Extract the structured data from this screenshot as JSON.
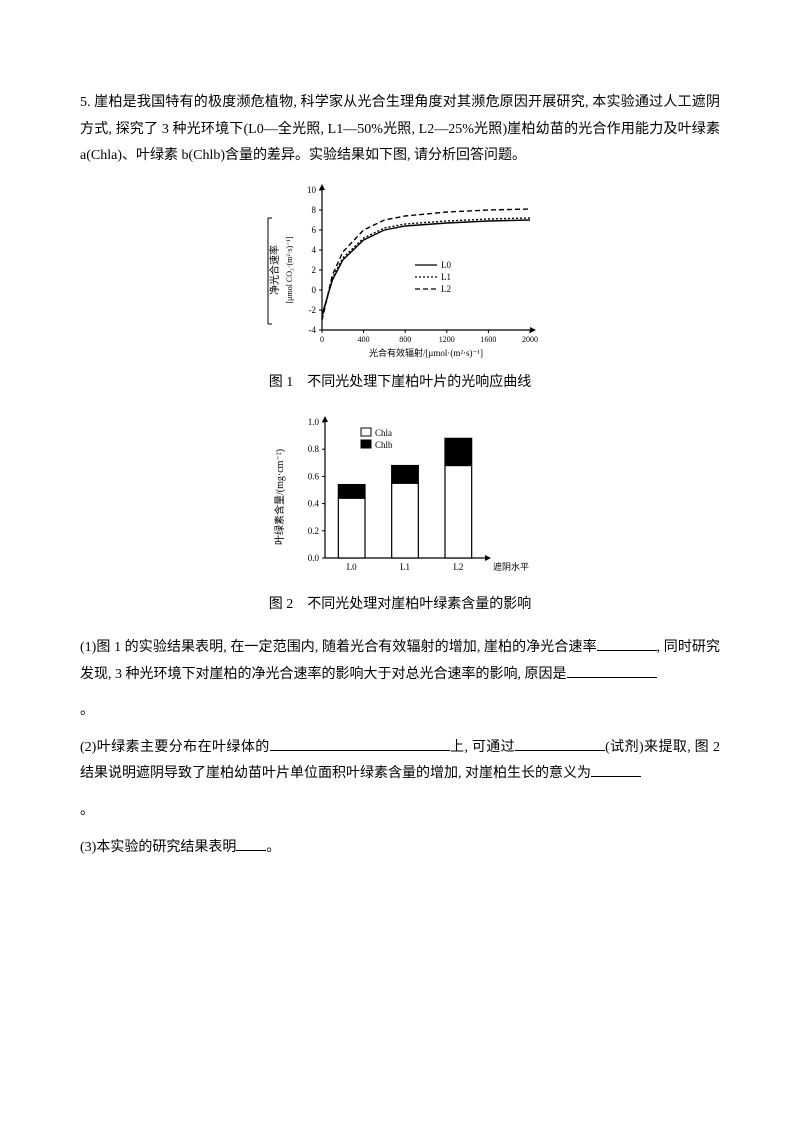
{
  "intro": "5. 崖柏是我国特有的极度濒危植物, 科学家从光合生理角度对其濒危原因开展研究, 本实验通过人工遮阴方式, 探究了 3 种光环境下(L0—全光照, L1—50%光照, L2—25%光照)崖柏幼苗的光合作用能力及叶绿素 a(Chla)、叶绿素 b(Chlb)含量的差异。实验结果如下图, 请分析回答问题。",
  "fig1": {
    "caption": "图 1　不同光处理下崖柏叶片的光响应曲线",
    "ylabel_line1": "净光合速率",
    "ylabel_line2": "[μmol CO₂·(m²·s)⁻¹]",
    "xlabel": "光合有效辐射/[μmol·(m²·s)⁻¹]",
    "xticks": [
      0,
      400,
      800,
      1200,
      1600,
      2000
    ],
    "yticks": [
      -4,
      -2,
      0,
      2,
      4,
      6,
      8,
      10
    ],
    "legend": [
      "L0",
      "L1",
      "L2"
    ],
    "colors": {
      "axis": "#000000",
      "grid": "#ffffff",
      "L0": "#000000",
      "L1": "#000000",
      "L2": "#000000"
    },
    "series": {
      "L0": [
        [
          0,
          -2.5
        ],
        [
          100,
          1
        ],
        [
          200,
          3
        ],
        [
          400,
          5
        ],
        [
          600,
          6
        ],
        [
          800,
          6.4
        ],
        [
          1200,
          6.7
        ],
        [
          1600,
          6.9
        ],
        [
          2000,
          7.0
        ]
      ],
      "L1": [
        [
          0,
          -2.8
        ],
        [
          100,
          1.2
        ],
        [
          200,
          3.2
        ],
        [
          400,
          5.2
        ],
        [
          600,
          6.2
        ],
        [
          800,
          6.6
        ],
        [
          1200,
          6.9
        ],
        [
          1600,
          7.1
        ],
        [
          2000,
          7.2
        ]
      ],
      "L2": [
        [
          0,
          -3
        ],
        [
          100,
          1.5
        ],
        [
          200,
          3.8
        ],
        [
          400,
          6
        ],
        [
          600,
          7
        ],
        [
          800,
          7.4
        ],
        [
          1200,
          7.8
        ],
        [
          1600,
          8.0
        ],
        [
          2000,
          8.1
        ]
      ]
    },
    "styles": {
      "L0": {
        "dash": "none",
        "width": 1.4
      },
      "L1": {
        "dash": "2,2",
        "width": 1.4
      },
      "L2": {
        "dash": "5,3",
        "width": 1.4
      }
    }
  },
  "fig2": {
    "caption": "图 2　不同光处理对崖柏叶绿素含量的影响",
    "ylabel": "叶绿素含量/(mg·cm⁻²)",
    "xlabel": "遮阴水平",
    "categories": [
      "L0",
      "L1",
      "L2"
    ],
    "chla": [
      0.44,
      0.55,
      0.68
    ],
    "chlb": [
      0.1,
      0.13,
      0.2
    ],
    "yticks": [
      0,
      0.2,
      0.4,
      0.6,
      0.8,
      1.0
    ],
    "legend": [
      "Chla",
      "Chlb"
    ],
    "colors": {
      "chla": "#ffffff",
      "chlb": "#000000",
      "border": "#000000",
      "axis": "#000000"
    },
    "bar_width": 0.5
  },
  "q1": {
    "prefix": "(1)图 1 的实验结果表明, 在一定范围内, 随着光合有效辐射的增加, 崖柏的净光合速率",
    "mid": ", 同时研究发现, 3 种光环境下对崖柏的净光合速率的影响大于对总光合速率的影响, 原因是",
    "end": "。"
  },
  "q2": {
    "prefix": "(2)叶绿素主要分布在叶绿体的",
    "mid1": "上, 可通过",
    "mid2": "(试剂)来提取, 图 2 结果说明遮阴导致了崖柏幼苗叶片单位面积叶绿素含量的增加, 对崖柏生长的意义为",
    "end": "。"
  },
  "q3": {
    "prefix": "(3)本实验的研究结果表明",
    "end": "。"
  }
}
